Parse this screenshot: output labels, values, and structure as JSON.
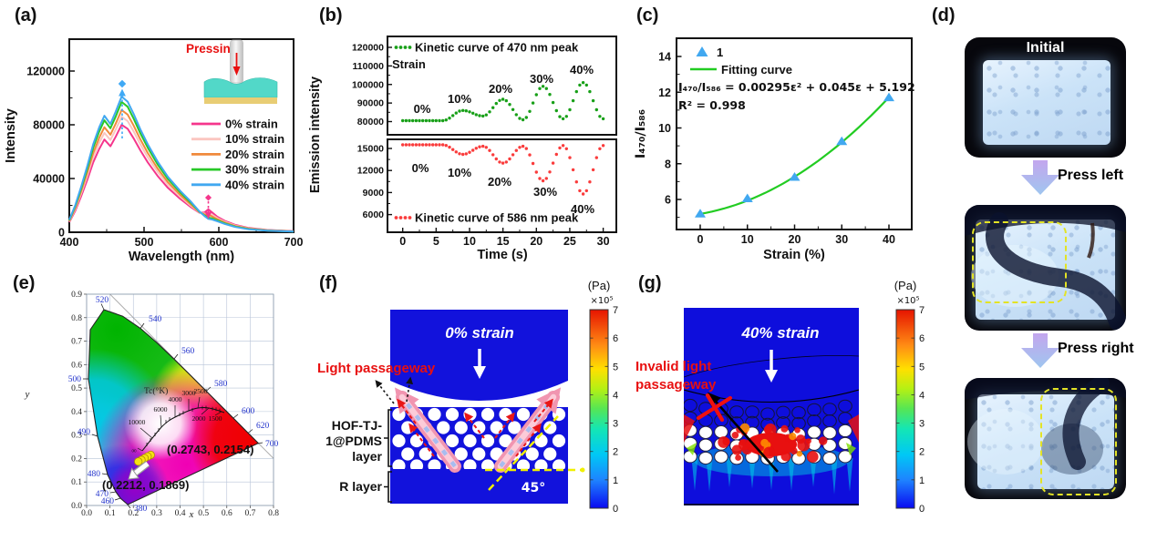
{
  "panels": {
    "a": {
      "label": "(a)",
      "xlabel": "Wavelength (nm)",
      "ylabel": "Intensity",
      "inset_label": "Pressing",
      "x_ticks": [
        "400",
        "500",
        "600",
        "700"
      ],
      "y_ticks": [
        "0",
        "40000",
        "80000",
        "120000"
      ],
      "legend": [
        {
          "label": "0% strain",
          "color": "#F5368C"
        },
        {
          "label": "10% strain",
          "color": "#FBC6C0"
        },
        {
          "label": "20% strain",
          "color": "#F08A3C"
        },
        {
          "label": "30% strain",
          "color": "#28C828"
        },
        {
          "label": "40% strain",
          "color": "#41A8F0"
        }
      ]
    },
    "b": {
      "label": "(b)",
      "xlabel": "Time (s)",
      "ylabel": "Emission intensity",
      "x_ticks": [
        "0",
        "5",
        "10",
        "15",
        "20",
        "25",
        "30"
      ],
      "top": {
        "curve_label": "Kinetic curve of 470 nm peak",
        "strain_label": "Strain",
        "y_ticks": [
          "80000",
          "90000",
          "100000",
          "110000",
          "120000"
        ],
        "annotations": [
          "0%",
          "10%",
          "20%",
          "30%",
          "40%"
        ],
        "color": "#18A018"
      },
      "bottom": {
        "curve_label": "Kinetic curve of 586 nm peak",
        "y_ticks": [
          "6000",
          "9000",
          "12000",
          "15000"
        ],
        "annotations": [
          "0%",
          "10%",
          "20%",
          "30%",
          "40%"
        ],
        "color": "#FA3C3C"
      }
    },
    "c": {
      "label": "(c)",
      "xlabel": "Strain (%)",
      "ylabel": "I₄₇₀/I₅₈₆",
      "x_ticks": [
        "0",
        "10",
        "20",
        "30",
        "40"
      ],
      "y_ticks": [
        "6",
        "8",
        "10",
        "12",
        "14"
      ],
      "legend_point": "1",
      "legend_fit": "Fitting curve",
      "equation": "I₄₇₀/I₅₈₆ = 0.00295ε² + 0.045ε + 5.192",
      "r_squared": "R² = 0.998",
      "point_color": "#41A8F0",
      "fit_color": "#22CC22"
    },
    "d": {
      "label": "(d)",
      "photo1_label": "Initial",
      "arrow1_label": "Press left",
      "arrow2_label": "Press right"
    },
    "e": {
      "label": "(e)",
      "x_title": "x",
      "y_title": "y",
      "cct_title": "Tc(°K)",
      "x_ticks": [
        "0.0",
        "0.1",
        "0.2",
        "0.3",
        "0.4",
        "0.5",
        "0.6",
        "0.7",
        "0.8"
      ],
      "y_ticks": [
        "0.0",
        "0.1",
        "0.2",
        "0.3",
        "0.4",
        "0.5",
        "0.6",
        "0.7",
        "0.8",
        "0.9"
      ],
      "cct_labels": [
        "10000",
        "6000",
        "4000",
        "3000",
        "2500",
        "2000",
        "1500",
        "∞"
      ],
      "wavelength_labels": [
        "520",
        "540",
        "560",
        "580",
        "600",
        "620",
        "700",
        "500",
        "490",
        "480",
        "470",
        "460",
        "380"
      ],
      "annotation_start": "(0.2743, 0.2154)",
      "annotation_end": "(0.2212, 0.1869)"
    },
    "f": {
      "label": "(f)",
      "strain_label": "0% strain",
      "passage_label": "Light passageway",
      "layer1_label": [
        "HOF-TJ-",
        "1@PDMS",
        "layer"
      ],
      "layer2_label": "R layer",
      "angle_label": "45°",
      "colorbar_unit": "(Pa)",
      "colorbar_scale": "×10⁵",
      "colorbar_ticks": [
        "0",
        "1",
        "2",
        "3",
        "4",
        "5",
        "6",
        "7"
      ]
    },
    "g": {
      "label": "(g)",
      "strain_label": "40% strain",
      "passage_label": [
        "Invalid light",
        "passageway"
      ],
      "colorbar_unit": "(Pa)",
      "colorbar_scale": "×10⁵",
      "colorbar_ticks": [
        "0",
        "1",
        "2",
        "3",
        "4",
        "5",
        "6",
        "7"
      ]
    }
  },
  "chart_data": [
    {
      "id": "a",
      "type": "line",
      "xlabel": "Wavelength (nm)",
      "ylabel": "Intensity",
      "xlim": [
        400,
        700
      ],
      "ylim": [
        0,
        143000
      ],
      "x_ticks": [
        400,
        500,
        600,
        700
      ],
      "y_ticks": [
        0,
        40000,
        80000,
        120000
      ],
      "x": [
        400,
        408,
        416,
        424,
        432,
        440,
        447,
        455,
        462,
        470,
        478,
        486,
        495,
        505,
        518,
        532,
        548,
        562,
        574,
        581,
        586,
        591,
        598,
        608,
        622,
        640,
        665,
        700
      ],
      "series": [
        {
          "name": "0% strain",
          "color": "#F5368C",
          "values": [
            7500,
            16000,
            27000,
            39000,
            52000,
            62000,
            69000,
            64000,
            71000,
            80000,
            77000,
            70000,
            61000,
            52000,
            42000,
            33000,
            25000,
            19000,
            14500,
            14800,
            17000,
            14800,
            11500,
            8500,
            5500,
            3200,
            1700,
            800
          ]
        },
        {
          "name": "10% strain",
          "color": "#FBC6C0",
          "values": [
            8000,
            17200,
            29000,
            42000,
            55800,
            66600,
            74000,
            68700,
            76300,
            86000,
            82800,
            75200,
            65500,
            55800,
            45000,
            35300,
            26600,
            20000,
            14800,
            13800,
            14500,
            13000,
            10500,
            7800,
            5000,
            2900,
            1500,
            700
          ]
        },
        {
          "name": "20% strain",
          "color": "#F08A3C",
          "values": [
            8400,
            18200,
            30700,
            44400,
            59000,
            70400,
            78200,
            72600,
            80700,
            91000,
            87600,
            79500,
            69200,
            59000,
            47500,
            37200,
            28000,
            21000,
            15000,
            13200,
            13000,
            11800,
            9700,
            7200,
            4600,
            2700,
            1400,
            600
          ]
        },
        {
          "name": "30% strain",
          "color": "#28C828",
          "values": [
            8900,
            19400,
            32700,
            47300,
            62900,
            75000,
            83300,
            77400,
            86000,
            97000,
            93400,
            84700,
            73700,
            62900,
            50600,
            39600,
            29800,
            22300,
            15300,
            12400,
            11000,
            10300,
            8800,
            6600,
            4200,
            2400,
            1300,
            500
          ]
        },
        {
          "name": "40% strain",
          "color": "#41A8F0",
          "values": [
            9300,
            20200,
            34000,
            49200,
            65400,
            78100,
            86700,
            80600,
            89600,
            101000,
            97200,
            88200,
            76700,
            65400,
            52700,
            41200,
            31000,
            23200,
            15500,
            12000,
            10000,
            9500,
            8200,
            6200,
            3900,
            2200,
            1200,
            450
          ]
        }
      ]
    },
    {
      "id": "b-470",
      "type": "line",
      "style": "dotted",
      "name": "Kinetic curve of 470 nm peak",
      "color": "#18A018",
      "xlabel": "Time (s)",
      "ylabel": "Emission intensity",
      "x_ticks": [
        0,
        5,
        10,
        15,
        20,
        25,
        30
      ],
      "y_ticks": [
        80000,
        90000,
        100000,
        110000,
        120000
      ],
      "strain_steps": [
        "0%",
        "10%",
        "20%",
        "30%",
        "40%"
      ],
      "x": [
        0,
        6,
        9,
        12,
        15,
        18,
        21,
        24,
        27,
        30
      ],
      "y": [
        80500,
        80500,
        86000,
        83000,
        92000,
        81000,
        99000,
        81500,
        101000,
        81500
      ]
    },
    {
      "id": "b-586",
      "type": "line",
      "style": "dotted",
      "name": "Kinetic curve of 586 nm peak",
      "color": "#FA3C3C",
      "y_ticks": [
        6000,
        9000,
        12000,
        15000
      ],
      "strain_steps": [
        "0%",
        "10%",
        "20%",
        "30%",
        "40%"
      ],
      "x": [
        0,
        6,
        9,
        12,
        15,
        18,
        21,
        24,
        27,
        30
      ],
      "y": [
        15500,
        15500,
        14200,
        15300,
        13000,
        15300,
        10600,
        15400,
        8800,
        15400
      ]
    },
    {
      "id": "c",
      "type": "scatter",
      "xlabel": "Strain (%)",
      "ylabel": "I470/I586",
      "x_ticks": [
        0,
        10,
        20,
        30,
        40
      ],
      "y_ticks": [
        6,
        8,
        10,
        12,
        14
      ],
      "points_x": [
        0,
        10,
        20,
        30,
        40
      ],
      "points_y": [
        5.2,
        6.05,
        7.25,
        9.25,
        11.7
      ],
      "series_label": "1",
      "fit": {
        "type": "quadratic",
        "coeffs": [
          0.00295,
          0.045,
          5.192
        ],
        "label": "Fitting curve",
        "equation": "I₄₇₀/I₅₈₆ = 0.00295ε² + 0.045ε + 5.192",
        "r_squared": "R² = 0.998"
      }
    },
    {
      "id": "e",
      "type": "scatter",
      "xlabel": "x",
      "ylabel": "y",
      "xlim": [
        0,
        0.8
      ],
      "ylim": [
        0,
        0.9
      ],
      "points": [
        [
          0.2743,
          0.2154
        ],
        [
          0.261,
          0.2085
        ],
        [
          0.2478,
          0.2015
        ],
        [
          0.2345,
          0.194
        ],
        [
          0.2212,
          0.1869
        ]
      ],
      "annotations": [
        "(0.2743, 0.2154)",
        "(0.2212, 0.1869)"
      ]
    }
  ]
}
